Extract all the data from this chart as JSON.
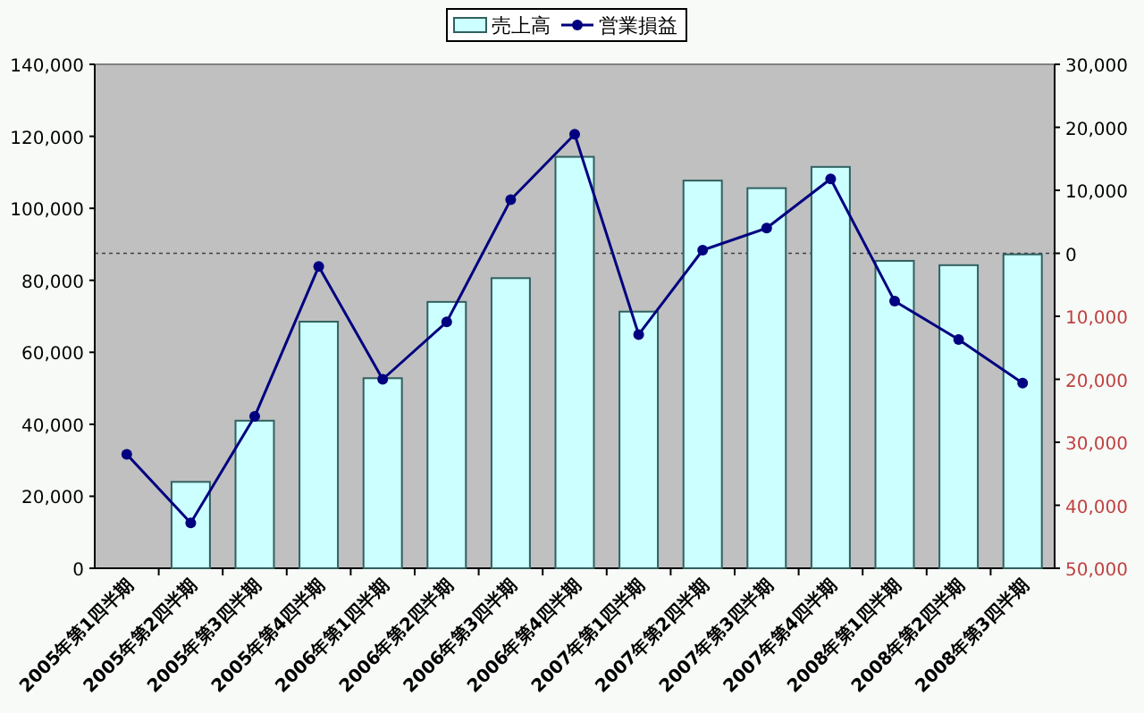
{
  "chart_data": {
    "type": "bar",
    "categories": [
      "2005年第1四半期",
      "2005年第2四半期",
      "2005年第3四半期",
      "2005年第4四半期",
      "2006年第1四半期",
      "2006年第2四半期",
      "2006年第3四半期",
      "2006年第4四半期",
      "2007年第1四半期",
      "2007年第2四半期",
      "2007年第3四半期",
      "2007年第4四半期",
      "2008年第1四半期",
      "2008年第2四半期",
      "2008年第3四半期"
    ],
    "series": [
      {
        "name": "売上高",
        "color": "#ccffff",
        "values": [
          null,
          24000,
          41000,
          68500,
          52800,
          74000,
          80600,
          114300,
          71300,
          107700,
          105600,
          111500,
          85400,
          84200,
          87200
        ]
      },
      {
        "name": "営業損益",
        "type": "line",
        "axis": "y2",
        "color": "#000080",
        "marker": "circle",
        "values": [
          -31900,
          -42800,
          -25900,
          -2100,
          -20000,
          -10900,
          8500,
          18900,
          -12900,
          500,
          4000,
          11800,
          -7600,
          -13700,
          -20600
        ]
      }
    ],
    "ylim": [
      0,
      140000
    ],
    "yticks": [
      0,
      {
        "value": 20000,
        "label": "20,000"
      },
      {
        "value": 40000,
        "label": "40,000"
      },
      {
        "value": 60000,
        "label": "60,000"
      },
      {
        "value": 80000,
        "label": "80,000"
      },
      {
        "value": 100000,
        "label": "100,000"
      },
      {
        "value": 120000,
        "label": "120,000"
      },
      {
        "value": 140000,
        "label": "140,000"
      }
    ],
    "y2lim": [
      -50000,
      30000
    ],
    "y2ticks": [
      {
        "value": -50000,
        "label": "50,000"
      },
      {
        "value": -40000,
        "label": "40,000"
      },
      {
        "value": -30000,
        "label": "30,000"
      },
      {
        "value": -20000,
        "label": "20,000"
      },
      {
        "value": -10000,
        "label": "10,000"
      },
      0,
      {
        "value": 10000,
        "label": "10,000"
      },
      {
        "value": 20000,
        "label": "20,000"
      },
      {
        "value": 30000,
        "label": "30,000"
      }
    ],
    "ref_lines": [
      {
        "axis": "y2",
        "value": 0,
        "color": "#404040",
        "line_style": "dotted"
      }
    ],
    "legend": "top",
    "grid": false
  }
}
